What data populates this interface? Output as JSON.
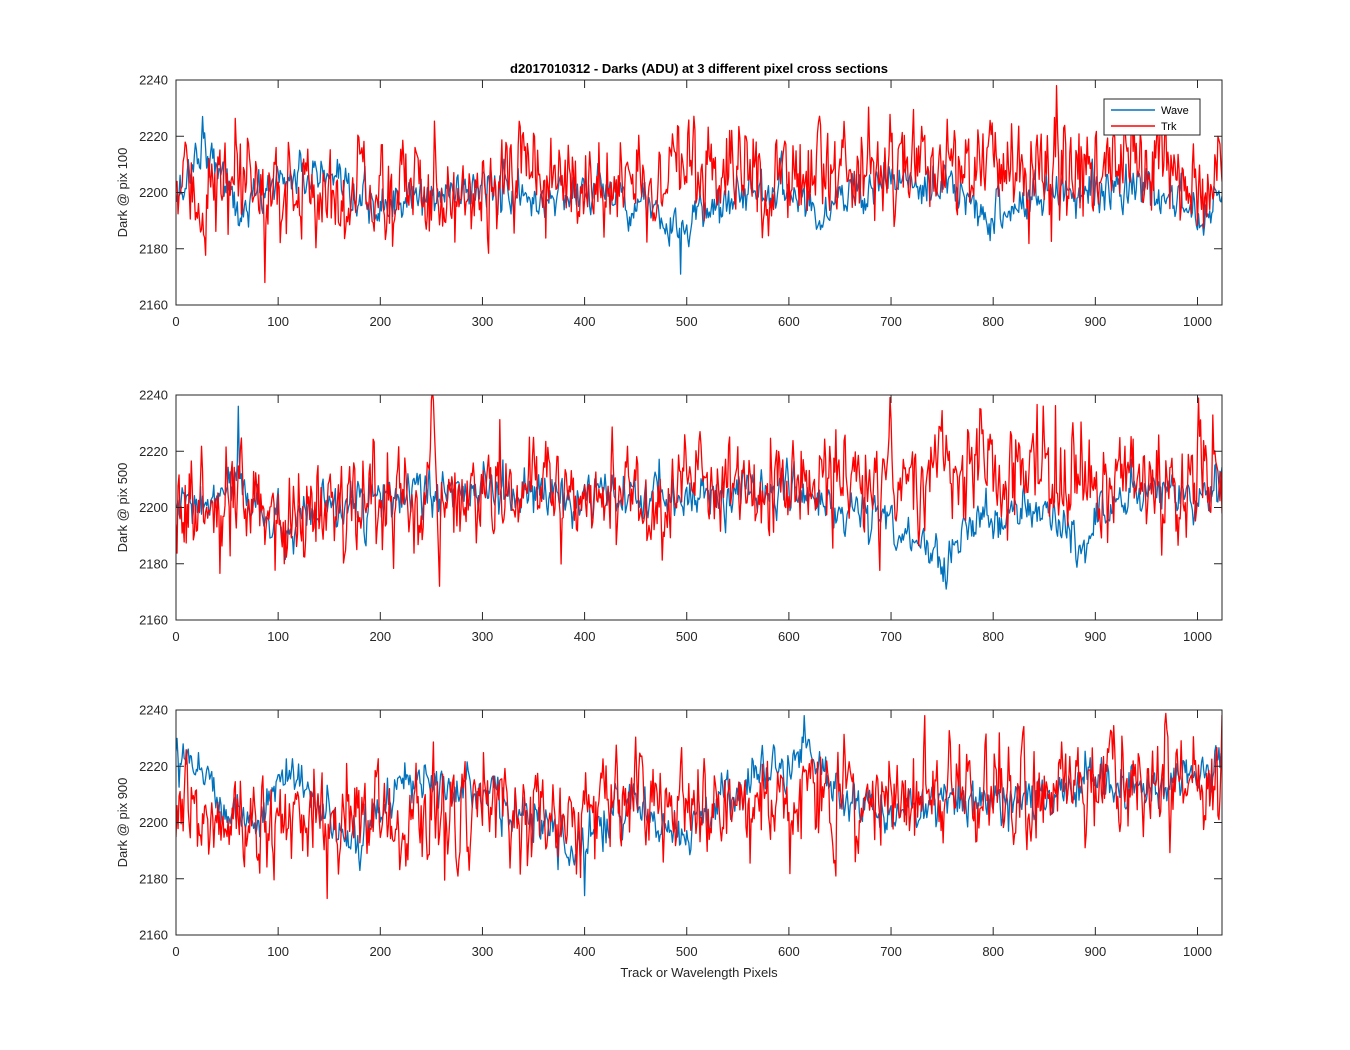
{
  "figure": {
    "title": "d2017010312 - Darks (ADU) at 3 different pixel cross sections",
    "xlabel": "Track or Wavelength Pixels"
  },
  "colors": {
    "wave": "#0072BD",
    "trk": "#FF0000",
    "axis": "#262626",
    "background": "#ffffff"
  },
  "chart_data": [
    {
      "type": "line",
      "ylabel": "Dark @ pix 100",
      "xlim": [
        0,
        1024
      ],
      "ylim": [
        2160,
        2240
      ],
      "xticks": [
        0,
        100,
        200,
        300,
        400,
        500,
        600,
        700,
        800,
        900,
        1000
      ],
      "yticks": [
        2160,
        2180,
        2200,
        2220,
        2240
      ],
      "legend": {
        "placement": "top-right",
        "entries": [
          "Wave",
          "Trk"
        ]
      },
      "series": [
        {
          "name": "Wave",
          "trend": {
            "x": [
              0,
              10,
              25,
              45,
              60,
              100,
              140,
              170,
              200,
              250,
              300,
              350,
              400,
              450,
              470,
              480,
              490,
              500,
              520,
              550,
              600,
              620,
              630,
              650,
              700,
              720,
              760,
              800,
              850,
              900,
              950,
              980,
              1010,
              1024
            ],
            "y": [
              2196,
              2205,
              2218,
              2208,
              2192,
              2205,
              2206,
              2196,
              2195,
              2198,
              2203,
              2196,
              2202,
              2198,
              2193,
              2188,
              2183,
              2186,
              2194,
              2200,
              2202,
              2198,
              2189,
              2200,
              2205,
              2201,
              2200,
              2192,
              2199,
              2203,
              2200,
              2196,
              2193,
              2205
            ]
          },
          "noise": 4,
          "extremes": {
            "max": 2227,
            "min": 2171
          }
        },
        {
          "name": "Trk",
          "trend": {
            "x": [
              0,
              100,
              200,
              300,
              400,
              500,
              600,
              700,
              800,
              900,
              1000,
              1024
            ],
            "y": [
              2200,
              2200,
              2200,
              2203,
              2203,
              2204,
              2208,
              2210,
              2210,
              2209,
              2205,
              2205
            ]
          },
          "noise": 9,
          "extremes": {
            "max": 2238,
            "min": 2168
          }
        }
      ]
    },
    {
      "type": "line",
      "ylabel": "Dark @ pix 500",
      "xlim": [
        0,
        1024
      ],
      "ylim": [
        2160,
        2240
      ],
      "xticks": [
        0,
        100,
        200,
        300,
        400,
        500,
        600,
        700,
        800,
        900,
        1000
      ],
      "yticks": [
        2160,
        2180,
        2200,
        2220,
        2240
      ],
      "series": [
        {
          "name": "Wave",
          "trend": {
            "x": [
              0,
              30,
              60,
              80,
              100,
              110,
              130,
              160,
              200,
              300,
              400,
              500,
              600,
              650,
              700,
              730,
              750,
              770,
              800,
              850,
              880,
              890,
              900,
              950,
              1000,
              1024
            ],
            "y": [
              2200,
              2200,
              2210,
              2200,
              2193,
              2188,
              2196,
              2200,
              2203,
              2206,
              2202,
              2204,
              2207,
              2199,
              2196,
              2186,
              2181,
              2192,
              2196,
              2200,
              2190,
              2184,
              2196,
              2207,
              2203,
              2208
            ]
          },
          "noise": 4,
          "extremes": {
            "max": 2236,
            "min": 2171
          }
        },
        {
          "name": "Trk",
          "trend": {
            "x": [
              0,
              100,
              150,
              200,
              300,
              400,
              500,
              600,
              700,
              800,
              900,
              1000,
              1024
            ],
            "y": [
              2200,
              2196,
              2200,
              2202,
              2205,
              2206,
              2205,
              2209,
              2210,
              2212,
              2212,
              2208,
              2208
            ]
          },
          "noise": 9,
          "extremes": {
            "max": 2238,
            "min": 2172
          }
        }
      ]
    },
    {
      "type": "line",
      "ylabel": "Dark @ pix 900",
      "xlim": [
        0,
        1024
      ],
      "ylim": [
        2160,
        2240
      ],
      "xticks": [
        0,
        100,
        200,
        300,
        400,
        500,
        600,
        700,
        800,
        900,
        1000
      ],
      "yticks": [
        2160,
        2180,
        2200,
        2220,
        2240
      ],
      "series": [
        {
          "name": "Wave",
          "trend": {
            "x": [
              0,
              20,
              50,
              80,
              110,
              140,
              170,
              200,
              230,
              260,
              300,
              350,
              380,
              390,
              410,
              450,
              500,
              550,
              600,
              620,
              650,
              700,
              750,
              800,
              850,
              900,
              950,
              1000,
              1024
            ],
            "y": [
              2228,
              2222,
              2205,
              2200,
              2220,
              2205,
              2190,
              2205,
              2215,
              2218,
              2210,
              2200,
              2192,
              2188,
              2200,
              2205,
              2197,
              2212,
              2222,
              2225,
              2210,
              2202,
              2208,
              2210,
              2208,
              2216,
              2212,
              2215,
              2222
            ]
          },
          "noise": 4,
          "extremes": {
            "max": 2238,
            "min": 2174
          }
        },
        {
          "name": "Trk",
          "trend": {
            "x": [
              0,
              100,
              200,
              300,
              400,
              500,
              600,
              700,
              800,
              900,
              1000,
              1024
            ],
            "y": [
              2200,
              2200,
              2202,
              2204,
              2205,
              2206,
              2208,
              2210,
              2212,
              2214,
              2212,
              2210
            ]
          },
          "noise": 9,
          "extremes": {
            "max": 2238,
            "min": 2173
          }
        }
      ]
    }
  ]
}
